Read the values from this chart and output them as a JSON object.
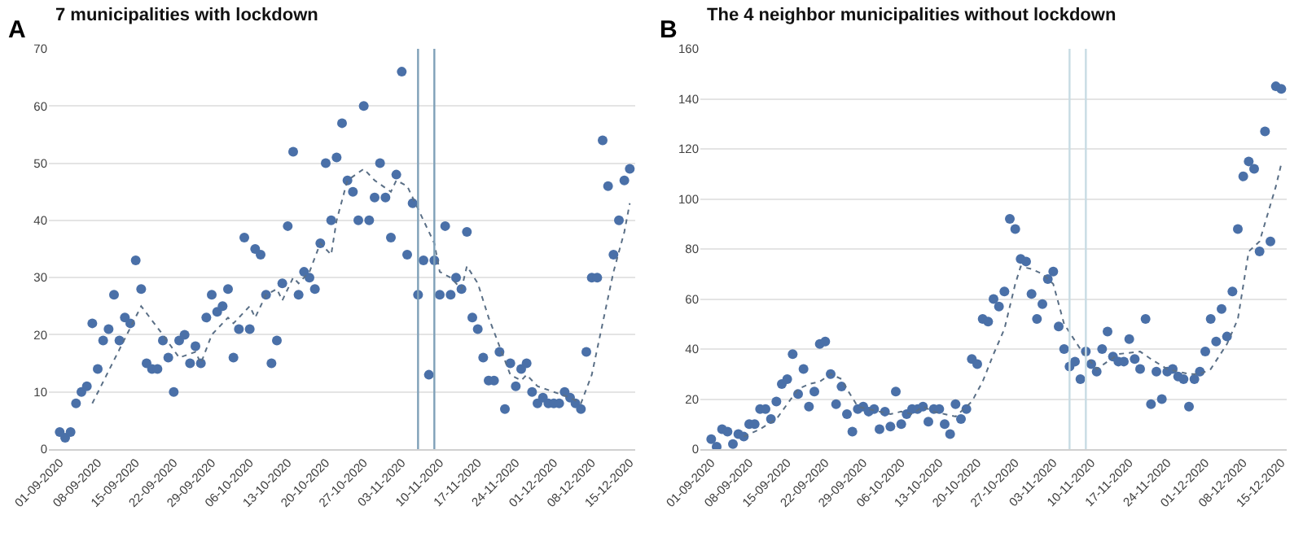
{
  "chart_data": [
    {
      "type": "scatter",
      "title": "7 municipalities with lockdown",
      "annotations": [
        "A"
      ],
      "x": [
        "2020-09-01",
        "2020-09-02",
        "2020-09-03",
        "2020-09-04",
        "2020-09-05",
        "2020-09-06",
        "2020-09-07",
        "2020-09-08",
        "2020-09-09",
        "2020-09-10",
        "2020-09-11",
        "2020-09-12",
        "2020-09-13",
        "2020-09-14",
        "2020-09-15",
        "2020-09-16",
        "2020-09-17",
        "2020-09-18",
        "2020-09-19",
        "2020-09-20",
        "2020-09-21",
        "2020-09-22",
        "2020-09-23",
        "2020-09-24",
        "2020-09-25",
        "2020-09-26",
        "2020-09-27",
        "2020-09-28",
        "2020-09-29",
        "2020-09-30",
        "2020-10-01",
        "2020-10-02",
        "2020-10-03",
        "2020-10-04",
        "2020-10-05",
        "2020-10-06",
        "2020-10-07",
        "2020-10-08",
        "2020-10-09",
        "2020-10-10",
        "2020-10-11",
        "2020-10-12",
        "2020-10-13",
        "2020-10-14",
        "2020-10-15",
        "2020-10-16",
        "2020-10-17",
        "2020-10-18",
        "2020-10-19",
        "2020-10-20",
        "2020-10-21",
        "2020-10-22",
        "2020-10-23",
        "2020-10-24",
        "2020-10-25",
        "2020-10-26",
        "2020-10-27",
        "2020-10-28",
        "2020-10-29",
        "2020-10-30",
        "2020-10-31",
        "2020-11-01",
        "2020-11-02",
        "2020-11-03",
        "2020-11-04",
        "2020-11-05",
        "2020-11-06",
        "2020-11-07",
        "2020-11-08",
        "2020-11-09",
        "2020-11-10",
        "2020-11-11",
        "2020-11-12",
        "2020-11-13",
        "2020-11-14",
        "2020-11-15",
        "2020-11-16",
        "2020-11-17",
        "2020-11-18",
        "2020-11-19",
        "2020-11-20",
        "2020-11-21",
        "2020-11-22",
        "2020-11-23",
        "2020-11-24",
        "2020-11-25",
        "2020-11-26",
        "2020-11-27",
        "2020-11-28",
        "2020-11-29",
        "2020-11-30",
        "2020-12-01",
        "2020-12-02",
        "2020-12-03",
        "2020-12-04",
        "2020-12-05",
        "2020-12-06",
        "2020-12-07",
        "2020-12-08",
        "2020-12-09",
        "2020-12-10",
        "2020-12-11",
        "2020-12-12",
        "2020-12-13",
        "2020-12-14",
        "2020-12-15"
      ],
      "series": [
        {
          "marker": "circle",
          "color": "#4a70a8",
          "values": [
            3,
            2,
            3,
            8,
            10,
            11,
            22,
            14,
            19,
            21,
            27,
            19,
            23,
            22,
            33,
            28,
            15,
            14,
            14,
            19,
            16,
            10,
            19,
            20,
            15,
            18,
            15,
            23,
            27,
            24,
            25,
            28,
            16,
            21,
            37,
            21,
            35,
            34,
            27,
            15,
            19,
            29,
            39,
            52,
            27,
            31,
            30,
            28,
            36,
            50,
            40,
            51,
            57,
            47,
            45,
            40,
            60,
            40,
            44,
            50,
            44,
            37,
            48,
            66,
            34,
            43,
            27,
            33,
            13,
            33,
            27,
            39,
            27,
            30,
            28,
            38,
            23,
            21,
            16,
            12,
            12,
            17,
            7,
            15,
            11,
            14,
            15,
            10,
            8,
            9,
            8,
            8,
            8,
            10,
            9,
            8,
            7,
            17,
            30,
            30,
            54,
            46,
            34,
            40,
            47,
            49
          ]
        },
        {
          "type": "line",
          "line_style": "dotted",
          "color": "#5a6f86",
          "x": [
            "2020-09-07",
            "2020-09-16",
            "2020-09-20",
            "2020-09-23",
            "2020-09-26",
            "2020-09-27",
            "2020-09-29",
            "2020-10-02",
            "2020-10-03",
            "2020-10-06",
            "2020-10-07",
            "2020-10-09",
            "2020-10-11",
            "2020-10-12",
            "2020-10-14",
            "2020-10-15",
            "2020-10-17",
            "2020-10-19",
            "2020-10-21",
            "2020-10-22",
            "2020-10-24",
            "2020-10-27",
            "2020-10-29",
            "2020-11-01",
            "2020-11-02",
            "2020-11-04",
            "2020-11-06",
            "2020-11-09",
            "2020-11-10",
            "2020-11-12",
            "2020-11-14",
            "2020-11-15",
            "2020-11-17",
            "2020-11-19",
            "2020-11-21",
            "2020-11-23",
            "2020-11-25",
            "2020-11-26",
            "2020-11-28",
            "2020-12-01",
            "2020-12-04",
            "2020-12-06",
            "2020-12-08",
            "2020-12-10",
            "2020-12-12",
            "2020-12-14",
            "2020-12-15"
          ],
          "values": [
            8,
            25,
            20,
            16,
            17,
            15,
            20,
            23,
            22,
            25,
            23,
            27,
            28,
            26,
            30,
            29,
            31,
            36,
            34,
            40,
            47,
            49,
            47,
            45,
            47,
            46,
            42,
            36,
            31,
            30,
            28,
            32,
            29,
            23,
            18,
            13,
            12,
            13,
            11,
            10,
            9,
            8,
            13,
            22,
            31,
            38,
            43
          ]
        }
      ],
      "xlim": [
        "2020-08-30",
        "2020-12-16"
      ],
      "xticks": [
        {
          "value": "2020-09-01",
          "label": "01-09-2020"
        },
        {
          "value": "2020-09-08",
          "label": "08-09-2020"
        },
        {
          "value": "2020-09-15",
          "label": "15-09-2020"
        },
        {
          "value": "2020-09-22",
          "label": "22-09-2020"
        },
        {
          "value": "2020-09-29",
          "label": "29-09-2020"
        },
        {
          "value": "2020-10-06",
          "label": "06-10-2020"
        },
        {
          "value": "2020-10-13",
          "label": "13-10-2020"
        },
        {
          "value": "2020-10-20",
          "label": "20-10-2020"
        },
        {
          "value": "2020-10-27",
          "label": "27-10-2020"
        },
        {
          "value": "2020-11-03",
          "label": "03-11-2020"
        },
        {
          "value": "2020-11-10",
          "label": "10-11-2020"
        },
        {
          "value": "2020-11-17",
          "label": "17-11-2020"
        },
        {
          "value": "2020-11-24",
          "label": "24-11-2020"
        },
        {
          "value": "2020-12-01",
          "label": "01-12-2020"
        },
        {
          "value": "2020-12-08",
          "label": "08-12-2020"
        },
        {
          "value": "2020-12-15",
          "label": "15-12-2020"
        }
      ],
      "ylim": [
        0,
        70
      ],
      "yticks": [
        0,
        10,
        20,
        30,
        40,
        50,
        60,
        70
      ],
      "grid": "y",
      "ref_lines": [
        {
          "axis": "x",
          "value": "2020-11-06",
          "color": "#7fa0b8"
        },
        {
          "axis": "x",
          "value": "2020-11-09",
          "color": "#7fa0b8"
        }
      ]
    },
    {
      "type": "scatter",
      "title": "The 4 neighbor municipalities without lockdown",
      "annotations": [
        "B"
      ],
      "x": [
        "2020-09-01",
        "2020-09-02",
        "2020-09-03",
        "2020-09-04",
        "2020-09-05",
        "2020-09-06",
        "2020-09-07",
        "2020-09-08",
        "2020-09-09",
        "2020-09-10",
        "2020-09-11",
        "2020-09-12",
        "2020-09-13",
        "2020-09-14",
        "2020-09-15",
        "2020-09-16",
        "2020-09-17",
        "2020-09-18",
        "2020-09-19",
        "2020-09-20",
        "2020-09-21",
        "2020-09-22",
        "2020-09-23",
        "2020-09-24",
        "2020-09-25",
        "2020-09-26",
        "2020-09-27",
        "2020-09-28",
        "2020-09-29",
        "2020-09-30",
        "2020-10-01",
        "2020-10-02",
        "2020-10-03",
        "2020-10-04",
        "2020-10-05",
        "2020-10-06",
        "2020-10-07",
        "2020-10-08",
        "2020-10-09",
        "2020-10-10",
        "2020-10-11",
        "2020-10-12",
        "2020-10-13",
        "2020-10-14",
        "2020-10-15",
        "2020-10-16",
        "2020-10-17",
        "2020-10-18",
        "2020-10-19",
        "2020-10-20",
        "2020-10-21",
        "2020-10-22",
        "2020-10-23",
        "2020-10-24",
        "2020-10-25",
        "2020-10-26",
        "2020-10-27",
        "2020-10-28",
        "2020-10-29",
        "2020-10-30",
        "2020-10-31",
        "2020-11-01",
        "2020-11-02",
        "2020-11-03",
        "2020-11-04",
        "2020-11-05",
        "2020-11-06",
        "2020-11-07",
        "2020-11-08",
        "2020-11-09",
        "2020-11-10",
        "2020-11-11",
        "2020-11-12",
        "2020-11-13",
        "2020-11-14",
        "2020-11-15",
        "2020-11-16",
        "2020-11-17",
        "2020-11-18",
        "2020-11-19",
        "2020-11-20",
        "2020-11-21",
        "2020-11-22",
        "2020-11-23",
        "2020-11-24",
        "2020-11-25",
        "2020-11-26",
        "2020-11-27",
        "2020-11-28",
        "2020-11-29",
        "2020-11-30",
        "2020-12-01",
        "2020-12-02",
        "2020-12-03",
        "2020-12-04",
        "2020-12-05",
        "2020-12-06",
        "2020-12-07",
        "2020-12-08",
        "2020-12-09",
        "2020-12-10",
        "2020-12-11",
        "2020-12-12",
        "2020-12-13",
        "2020-12-14",
        "2020-12-15"
      ],
      "series": [
        {
          "marker": "circle",
          "color": "#4a70a8",
          "values": [
            4,
            1,
            8,
            7,
            2,
            6,
            5,
            10,
            10,
            16,
            16,
            12,
            19,
            26,
            28,
            38,
            22,
            32,
            17,
            23,
            42,
            43,
            30,
            18,
            25,
            14,
            7,
            16,
            17,
            15,
            16,
            8,
            15,
            9,
            23,
            10,
            14,
            16,
            16,
            17,
            11,
            16,
            16,
            10,
            6,
            18,
            12,
            16,
            36,
            34,
            52,
            51,
            60,
            57,
            63,
            92,
            88,
            76,
            75,
            62,
            52,
            58,
            68,
            71,
            49,
            40,
            33,
            35,
            28,
            39,
            34,
            31,
            40,
            47,
            37,
            35,
            35,
            44,
            36,
            32,
            52,
            18,
            31,
            20,
            31,
            32,
            29,
            28,
            17,
            28,
            31,
            39,
            52,
            43,
            56,
            45,
            63,
            88,
            109,
            115,
            112,
            79,
            127,
            83,
            145,
            144
          ]
        },
        {
          "type": "line",
          "line_style": "dotted",
          "color": "#5a6f86",
          "x": [
            "2020-09-07",
            "2020-09-10",
            "2020-09-13",
            "2020-09-15",
            "2020-09-17",
            "2020-09-19",
            "2020-09-21",
            "2020-09-23",
            "2020-09-25",
            "2020-09-26",
            "2020-09-28",
            "2020-09-30",
            "2020-10-02",
            "2020-10-04",
            "2020-10-06",
            "2020-10-08",
            "2020-10-10",
            "2020-10-12",
            "2020-10-14",
            "2020-10-16",
            "2020-10-18",
            "2020-10-19",
            "2020-10-21",
            "2020-10-23",
            "2020-10-25",
            "2020-10-27",
            "2020-10-28",
            "2020-10-30",
            "2020-11-01",
            "2020-11-03",
            "2020-11-05",
            "2020-11-08",
            "2020-11-11",
            "2020-11-15",
            "2020-11-19",
            "2020-11-21",
            "2020-11-24",
            "2020-11-28",
            "2020-11-30",
            "2020-12-02",
            "2020-12-05",
            "2020-12-07",
            "2020-12-09",
            "2020-12-11",
            "2020-12-14",
            "2020-12-15"
          ],
          "values": [
            5,
            8,
            12,
            18,
            24,
            26,
            27,
            30,
            28,
            24,
            17,
            16,
            15,
            14,
            15,
            14,
            17,
            15,
            14,
            13,
            17,
            19,
            27,
            38,
            48,
            66,
            73,
            72,
            70,
            66,
            50,
            40,
            32,
            38,
            39,
            36,
            32,
            30,
            30,
            32,
            42,
            52,
            79,
            83,
            105,
            114
          ]
        }
      ],
      "xlim": [
        "2020-08-30",
        "2020-12-16"
      ],
      "xticks": [
        {
          "value": "2020-09-01",
          "label": "01-09-2020"
        },
        {
          "value": "2020-09-08",
          "label": "08-09-2020"
        },
        {
          "value": "2020-09-15",
          "label": "15-09-2020"
        },
        {
          "value": "2020-09-22",
          "label": "22-09-2020"
        },
        {
          "value": "2020-09-29",
          "label": "29-09-2020"
        },
        {
          "value": "2020-10-06",
          "label": "06-10-2020"
        },
        {
          "value": "2020-10-13",
          "label": "13-10-2020"
        },
        {
          "value": "2020-10-20",
          "label": "20-10-2020"
        },
        {
          "value": "2020-10-27",
          "label": "27-10-2020"
        },
        {
          "value": "2020-11-03",
          "label": "03-11-2020"
        },
        {
          "value": "2020-11-10",
          "label": "10-11-2020"
        },
        {
          "value": "2020-11-17",
          "label": "17-11-2020"
        },
        {
          "value": "2020-11-24",
          "label": "24-11-2020"
        },
        {
          "value": "2020-12-01",
          "label": "01-12-2020"
        },
        {
          "value": "2020-12-08",
          "label": "08-12-2020"
        },
        {
          "value": "2020-12-15",
          "label": "15-12-2020"
        }
      ],
      "ylim": [
        0,
        160
      ],
      "yticks": [
        0,
        20,
        40,
        60,
        80,
        100,
        120,
        140,
        160
      ],
      "grid": "y",
      "ref_lines": [
        {
          "axis": "x",
          "value": "2020-11-06",
          "color": "#c8dce4"
        },
        {
          "axis": "x",
          "value": "2020-11-09",
          "color": "#c8dce4"
        }
      ]
    }
  ]
}
